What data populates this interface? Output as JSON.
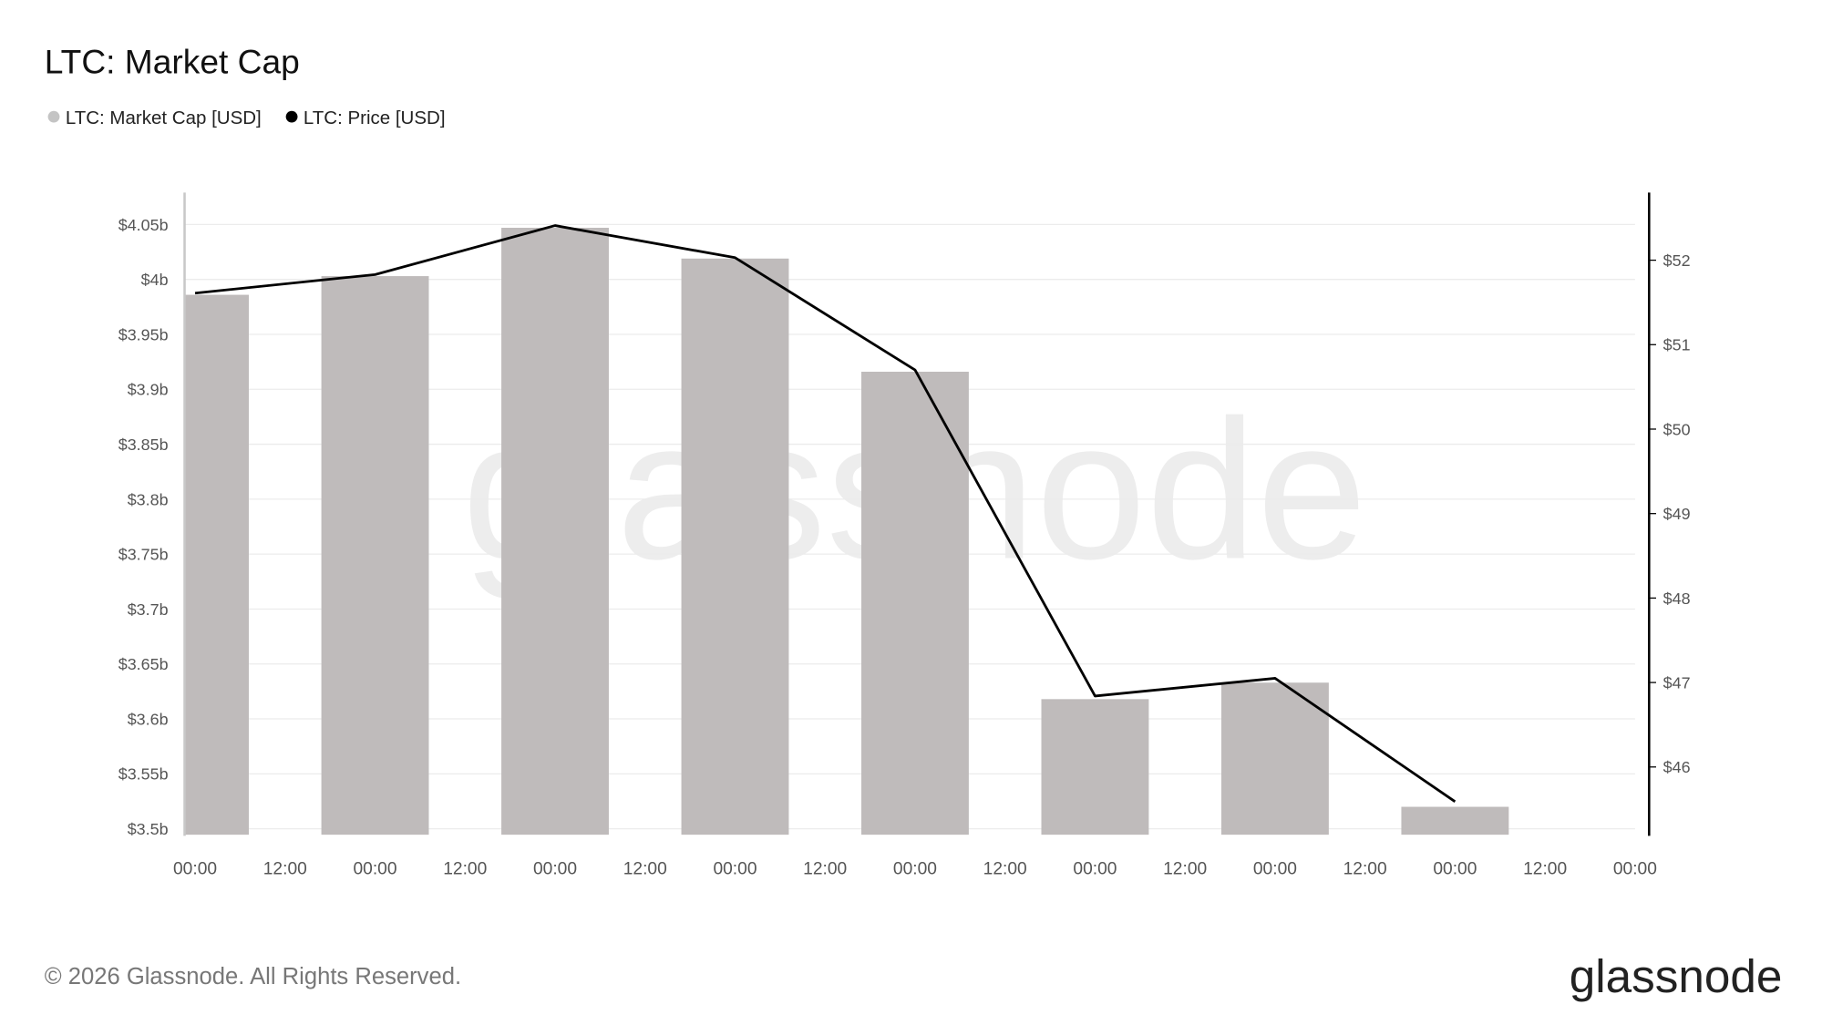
{
  "chart_data": {
    "type": "bar_line",
    "title": "LTC: Market Cap",
    "watermark": "glassnode",
    "footer": "© 2026 Glassnode. All Rights Reserved.",
    "logo": "glassnode",
    "categories": [
      "00:00",
      "00:00",
      "00:00",
      "00:00",
      "00:00",
      "00:00",
      "00:00",
      "00:00",
      "00:00"
    ],
    "minor_ticks": [
      "12:00",
      "12:00",
      "12:00",
      "12:00",
      "12:00",
      "12:00",
      "12:00",
      "12:00"
    ],
    "series": [
      {
        "name": "LTC: Market Cap [USD]",
        "type": "bar",
        "color": "#bfbbbb",
        "axis": "y",
        "values": [
          3986000000,
          4003000000,
          4047000000,
          4019000000,
          3916000000,
          3618000000,
          3633000000,
          3520000000,
          null
        ]
      },
      {
        "name": "LTC: Price [USD]",
        "type": "line",
        "color": "#000000",
        "axis": "y2",
        "values": [
          51.61,
          51.83,
          52.41,
          52.03,
          50.7,
          46.84,
          47.05,
          45.59,
          null
        ]
      }
    ],
    "ylim": [
      3494600000,
      4079000000
    ],
    "yticks": [
      {
        "value": 3500000000,
        "label": "$3.5b"
      },
      {
        "value": 3550000000,
        "label": "$3.55b"
      },
      {
        "value": 3600000000,
        "label": "$3.6b"
      },
      {
        "value": 3650000000,
        "label": "$3.65b"
      },
      {
        "value": 3700000000,
        "label": "$3.7b"
      },
      {
        "value": 3750000000,
        "label": "$3.75b"
      },
      {
        "value": 3800000000,
        "label": "$3.8b"
      },
      {
        "value": 3850000000,
        "label": "$3.85b"
      },
      {
        "value": 3900000000,
        "label": "$3.9b"
      },
      {
        "value": 3950000000,
        "label": "$3.95b"
      },
      {
        "value": 4000000000,
        "label": "$4b"
      },
      {
        "value": 4050000000,
        "label": "$4.05b"
      }
    ],
    "y2lim": [
      45.198,
      52.8
    ],
    "y2ticks": [
      {
        "value": 46,
        "label": "$46"
      },
      {
        "value": 47,
        "label": "$47"
      },
      {
        "value": 48,
        "label": "$48"
      },
      {
        "value": 49,
        "label": "$49"
      },
      {
        "value": 50,
        "label": "$50"
      },
      {
        "value": 51,
        "label": "$51"
      },
      {
        "value": 52,
        "label": "$52"
      }
    ],
    "grid": true
  }
}
